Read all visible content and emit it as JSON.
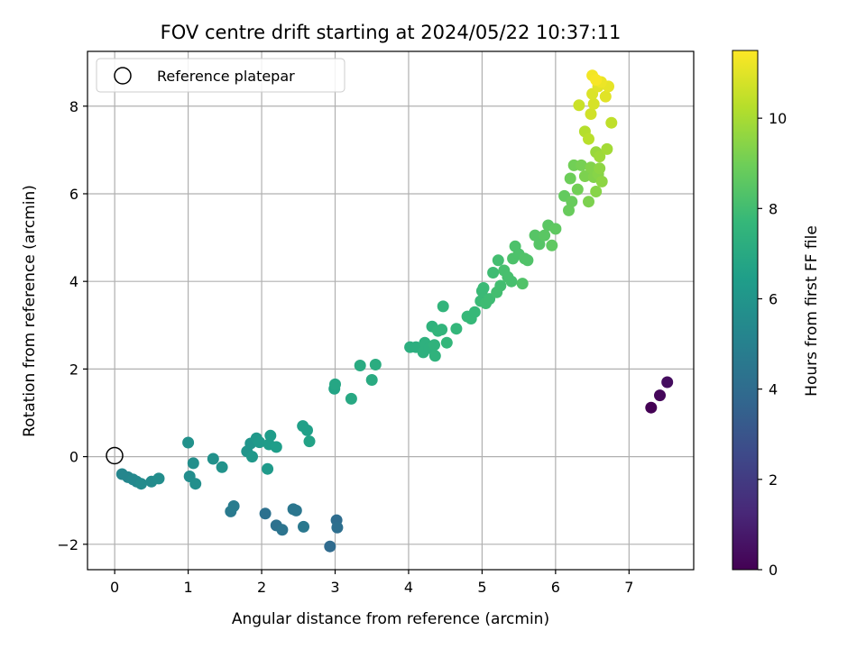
{
  "chart_data": {
    "type": "scatter",
    "title": "FOV centre drift starting at 2024/05/22 10:37:11",
    "xlabel": "Angular distance from reference (arcmin)",
    "ylabel": "Rotation from reference (arcmin)",
    "xlim": [
      -0.37,
      7.88
    ],
    "ylim": [
      -2.58,
      9.25
    ],
    "xticks": [
      0,
      1,
      2,
      3,
      4,
      5,
      6,
      7
    ],
    "yticks": [
      -2,
      0,
      2,
      4,
      6,
      8
    ],
    "grid": true,
    "legend": {
      "placement": "top-left",
      "entries": [
        "Reference platepar"
      ]
    },
    "reference_point": {
      "x": 0,
      "y": 0
    },
    "colorbar": {
      "label": "Hours from first FF file",
      "colormap": "viridis",
      "range": [
        0,
        11.5
      ],
      "ticks": [
        0,
        2,
        4,
        6,
        8,
        10
      ]
    },
    "colormap_stops": [
      "#440154",
      "#482878",
      "#3e4989",
      "#31688e",
      "#26828e",
      "#1f9e89",
      "#35b779",
      "#6ece58",
      "#b5de2b",
      "#fde725"
    ],
    "points": [
      {
        "x": 7.3,
        "y": 1.12,
        "h": 0.0
      },
      {
        "x": 7.42,
        "y": 1.4,
        "h": 0.2
      },
      {
        "x": 7.52,
        "y": 1.7,
        "h": 0.4
      },
      {
        "x": 2.93,
        "y": -2.05,
        "h": 4.0
      },
      {
        "x": 3.02,
        "y": -1.45,
        "h": 4.1
      },
      {
        "x": 3.03,
        "y": -1.62,
        "h": 4.2
      },
      {
        "x": 2.05,
        "y": -1.3,
        "h": 4.3
      },
      {
        "x": 2.2,
        "y": -1.57,
        "h": 4.3
      },
      {
        "x": 2.28,
        "y": -1.67,
        "h": 4.4
      },
      {
        "x": 2.43,
        "y": -1.2,
        "h": 4.5
      },
      {
        "x": 2.47,
        "y": -1.23,
        "h": 4.5
      },
      {
        "x": 2.57,
        "y": -1.6,
        "h": 4.6
      },
      {
        "x": 1.58,
        "y": -1.25,
        "h": 4.7
      },
      {
        "x": 1.62,
        "y": -1.13,
        "h": 4.8
      },
      {
        "x": 0.1,
        "y": -0.4,
        "h": 5.3
      },
      {
        "x": 0.18,
        "y": -0.47,
        "h": 5.3
      },
      {
        "x": 0.25,
        "y": -0.52,
        "h": 5.4
      },
      {
        "x": 0.3,
        "y": -0.57,
        "h": 5.4
      },
      {
        "x": 0.36,
        "y": -0.62,
        "h": 5.5
      },
      {
        "x": 0.5,
        "y": -0.57,
        "h": 5.5
      },
      {
        "x": 0.6,
        "y": -0.5,
        "h": 5.6
      },
      {
        "x": 1.02,
        "y": -0.45,
        "h": 5.6
      },
      {
        "x": 1.1,
        "y": -0.62,
        "h": 5.7
      },
      {
        "x": 1.07,
        "y": -0.15,
        "h": 5.7
      },
      {
        "x": 1.0,
        "y": 0.32,
        "h": 5.8
      },
      {
        "x": 1.34,
        "y": -0.05,
        "h": 5.8
      },
      {
        "x": 1.46,
        "y": -0.24,
        "h": 5.9
      },
      {
        "x": 1.8,
        "y": 0.12,
        "h": 6.0
      },
      {
        "x": 1.85,
        "y": 0.3,
        "h": 6.0
      },
      {
        "x": 1.87,
        "y": 0.0,
        "h": 6.1
      },
      {
        "x": 1.93,
        "y": 0.42,
        "h": 6.1
      },
      {
        "x": 1.97,
        "y": 0.33,
        "h": 6.2
      },
      {
        "x": 2.08,
        "y": -0.28,
        "h": 6.2
      },
      {
        "x": 2.1,
        "y": 0.28,
        "h": 6.3
      },
      {
        "x": 2.12,
        "y": 0.48,
        "h": 6.3
      },
      {
        "x": 2.2,
        "y": 0.22,
        "h": 6.4
      },
      {
        "x": 2.56,
        "y": 0.7,
        "h": 6.5
      },
      {
        "x": 2.62,
        "y": 0.6,
        "h": 6.5
      },
      {
        "x": 2.65,
        "y": 0.35,
        "h": 6.6
      },
      {
        "x": 2.99,
        "y": 1.55,
        "h": 6.7
      },
      {
        "x": 3.0,
        "y": 1.65,
        "h": 6.8
      },
      {
        "x": 3.22,
        "y": 1.32,
        "h": 6.9
      },
      {
        "x": 3.34,
        "y": 2.08,
        "h": 7.0
      },
      {
        "x": 3.5,
        "y": 1.75,
        "h": 7.0
      },
      {
        "x": 3.55,
        "y": 2.1,
        "h": 7.1
      },
      {
        "x": 4.02,
        "y": 2.5,
        "h": 7.2
      },
      {
        "x": 4.1,
        "y": 2.5,
        "h": 7.2
      },
      {
        "x": 4.2,
        "y": 2.38,
        "h": 7.3
      },
      {
        "x": 4.22,
        "y": 2.6,
        "h": 7.3
      },
      {
        "x": 4.28,
        "y": 2.48,
        "h": 7.3
      },
      {
        "x": 4.32,
        "y": 2.97,
        "h": 7.4
      },
      {
        "x": 4.35,
        "y": 2.55,
        "h": 7.4
      },
      {
        "x": 4.36,
        "y": 2.3,
        "h": 7.4
      },
      {
        "x": 4.4,
        "y": 2.87,
        "h": 7.5
      },
      {
        "x": 4.45,
        "y": 2.9,
        "h": 7.5
      },
      {
        "x": 4.47,
        "y": 3.43,
        "h": 7.5
      },
      {
        "x": 4.52,
        "y": 2.6,
        "h": 7.6
      },
      {
        "x": 4.65,
        "y": 2.92,
        "h": 7.6
      },
      {
        "x": 4.8,
        "y": 3.2,
        "h": 7.7
      },
      {
        "x": 4.85,
        "y": 3.15,
        "h": 7.7
      },
      {
        "x": 4.9,
        "y": 3.3,
        "h": 7.7
      },
      {
        "x": 4.98,
        "y": 3.55,
        "h": 7.8
      },
      {
        "x": 5.0,
        "y": 3.78,
        "h": 7.8
      },
      {
        "x": 5.02,
        "y": 3.85,
        "h": 7.8
      },
      {
        "x": 5.05,
        "y": 3.5,
        "h": 7.9
      },
      {
        "x": 5.1,
        "y": 3.6,
        "h": 7.9
      },
      {
        "x": 5.15,
        "y": 4.2,
        "h": 7.9
      },
      {
        "x": 5.2,
        "y": 3.75,
        "h": 8.0
      },
      {
        "x": 5.22,
        "y": 4.48,
        "h": 8.0
      },
      {
        "x": 5.25,
        "y": 3.9,
        "h": 8.0
      },
      {
        "x": 5.3,
        "y": 4.25,
        "h": 8.1
      },
      {
        "x": 5.35,
        "y": 4.1,
        "h": 8.1
      },
      {
        "x": 5.4,
        "y": 4.0,
        "h": 8.1
      },
      {
        "x": 5.42,
        "y": 4.52,
        "h": 8.2
      },
      {
        "x": 5.45,
        "y": 4.8,
        "h": 8.2
      },
      {
        "x": 5.5,
        "y": 4.62,
        "h": 8.2
      },
      {
        "x": 5.55,
        "y": 3.95,
        "h": 8.3
      },
      {
        "x": 5.58,
        "y": 4.52,
        "h": 8.3
      },
      {
        "x": 5.62,
        "y": 4.48,
        "h": 8.3
      },
      {
        "x": 5.72,
        "y": 5.05,
        "h": 8.4
      },
      {
        "x": 5.78,
        "y": 4.85,
        "h": 8.4
      },
      {
        "x": 5.85,
        "y": 5.05,
        "h": 8.5
      },
      {
        "x": 5.9,
        "y": 5.28,
        "h": 8.5
      },
      {
        "x": 5.95,
        "y": 4.82,
        "h": 8.6
      },
      {
        "x": 6.0,
        "y": 5.2,
        "h": 8.6
      },
      {
        "x": 6.12,
        "y": 5.95,
        "h": 8.7
      },
      {
        "x": 6.18,
        "y": 5.62,
        "h": 8.8
      },
      {
        "x": 6.22,
        "y": 5.82,
        "h": 8.8
      },
      {
        "x": 6.2,
        "y": 6.35,
        "h": 8.9
      },
      {
        "x": 6.25,
        "y": 6.65,
        "h": 9.0
      },
      {
        "x": 6.3,
        "y": 6.1,
        "h": 9.0
      },
      {
        "x": 6.35,
        "y": 6.65,
        "h": 9.1
      },
      {
        "x": 6.4,
        "y": 6.4,
        "h": 9.2
      },
      {
        "x": 6.45,
        "y": 5.82,
        "h": 9.2
      },
      {
        "x": 6.48,
        "y": 6.6,
        "h": 9.3
      },
      {
        "x": 6.52,
        "y": 6.38,
        "h": 9.3
      },
      {
        "x": 6.55,
        "y": 6.05,
        "h": 9.4
      },
      {
        "x": 6.58,
        "y": 6.45,
        "h": 9.4
      },
      {
        "x": 6.6,
        "y": 6.58,
        "h": 9.5
      },
      {
        "x": 6.63,
        "y": 6.28,
        "h": 9.5
      },
      {
        "x": 6.55,
        "y": 6.95,
        "h": 9.7
      },
      {
        "x": 6.6,
        "y": 6.85,
        "h": 9.8
      },
      {
        "x": 6.7,
        "y": 7.02,
        "h": 9.9
      },
      {
        "x": 6.4,
        "y": 7.42,
        "h": 10.2
      },
      {
        "x": 6.45,
        "y": 7.25,
        "h": 10.3
      },
      {
        "x": 6.76,
        "y": 7.62,
        "h": 10.4
      },
      {
        "x": 6.32,
        "y": 8.02,
        "h": 10.6
      },
      {
        "x": 6.48,
        "y": 7.82,
        "h": 10.7
      },
      {
        "x": 6.52,
        "y": 8.05,
        "h": 10.8
      },
      {
        "x": 6.5,
        "y": 8.28,
        "h": 10.9
      },
      {
        "x": 6.58,
        "y": 8.45,
        "h": 11.0
      },
      {
        "x": 6.68,
        "y": 8.22,
        "h": 11.0
      },
      {
        "x": 6.72,
        "y": 8.45,
        "h": 11.1
      },
      {
        "x": 6.62,
        "y": 8.55,
        "h": 11.2
      },
      {
        "x": 6.5,
        "y": 8.7,
        "h": 11.3
      },
      {
        "x": 6.55,
        "y": 8.6,
        "h": 11.4
      }
    ]
  }
}
